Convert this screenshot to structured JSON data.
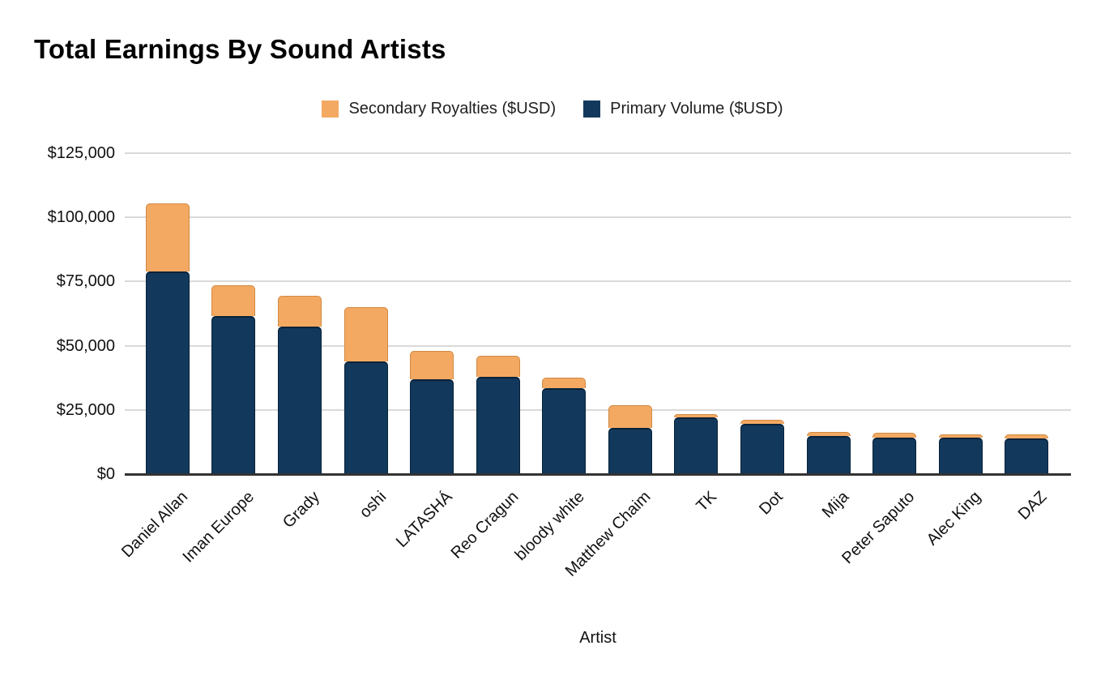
{
  "chart_data": {
    "type": "bar",
    "stacked": true,
    "title": "Total Earnings By Sound Artists",
    "xlabel": "Artist",
    "ylabel": "",
    "legend_position": "top",
    "grid": "horizontal",
    "gridline_color": "#D9D9D9",
    "axis_line_color": "#333333",
    "text_color": "#111111",
    "categories": [
      "Daniel Allan",
      "Iman Europe",
      "Grady",
      "oshi",
      "LATASHÁ",
      "Reo Cragun",
      "bloody white",
      "Matthew Chaim",
      "TK",
      "Dot",
      "Mija",
      "Peter Saputo",
      "Alec King",
      "DAZ"
    ],
    "series": [
      {
        "name": "Secondary Royalties ($USD)",
        "color": "#F3A962",
        "stack_position": "top",
        "values": [
          26500,
          12000,
          12000,
          21000,
          11000,
          8000,
          4000,
          9000,
          1500,
          1500,
          1500,
          1800,
          1300,
          1700
        ]
      },
      {
        "name": "Primary Volume ($USD)",
        "color": "#12395C",
        "stack_position": "bottom",
        "values": [
          79000,
          61500,
          57500,
          44000,
          37000,
          38000,
          33500,
          18000,
          22000,
          19500,
          15000,
          14200,
          14200,
          13800
        ]
      }
    ],
    "y_axis": {
      "min": 0,
      "max": 125000,
      "tick_step": 25000,
      "tick_labels": [
        "$0",
        "$25,000",
        "$50,000",
        "$75,000",
        "$100,000",
        "$125,000"
      ]
    }
  }
}
